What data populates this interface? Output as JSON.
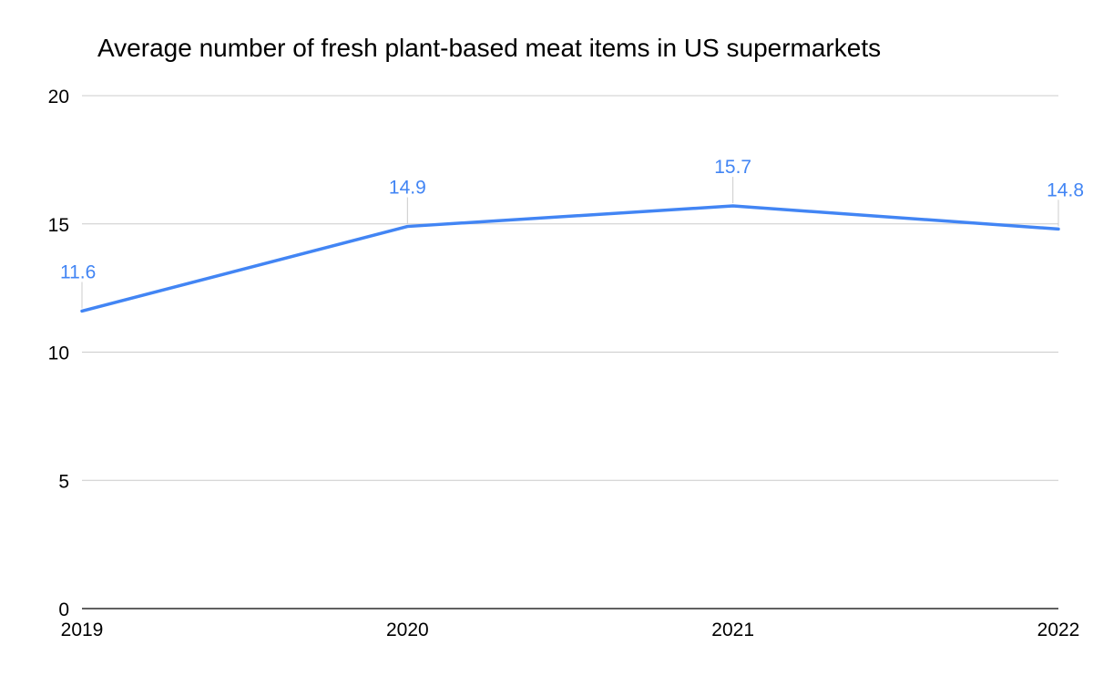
{
  "chart_data": {
    "type": "line",
    "title": "Average number of fresh plant-based meat items in US supermarkets",
    "xlabel": "",
    "ylabel": "",
    "categories": [
      "2019",
      "2020",
      "2021",
      "2022"
    ],
    "series": [
      {
        "name": "Average number of fresh plant-based meat items",
        "values": [
          11.6,
          14.9,
          15.7,
          14.8
        ],
        "color": "#4285f4"
      }
    ],
    "data_labels": [
      "11.6",
      "14.9",
      "15.7",
      "14.8"
    ],
    "ylim": [
      0,
      20
    ],
    "yticks": [
      "0",
      "5",
      "10",
      "15",
      "20"
    ],
    "grid": true,
    "legend": "none"
  }
}
